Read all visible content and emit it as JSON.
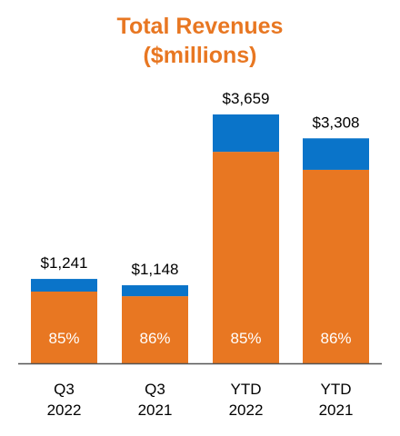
{
  "chart_data": {
    "type": "bar",
    "stacked": true,
    "title_lines": [
      "Total Revenues",
      "($millions)"
    ],
    "categories": [
      [
        "Q3",
        "2022"
      ],
      [
        "Q3",
        "2021"
      ],
      [
        "YTD",
        "2022"
      ],
      [
        "YTD",
        "2021"
      ]
    ],
    "totals": [
      1241,
      1148,
      3659,
      3308
    ],
    "total_labels": [
      "$1,241",
      "$1,148",
      "$3,659",
      "$3,308"
    ],
    "series": [
      {
        "values": [
          1055,
          987,
          3110,
          2845
        ],
        "color": "#e87722"
      },
      {
        "values": [
          186,
          161,
          549,
          463
        ],
        "color": "#0a74c9"
      }
    ],
    "segment_labels": [
      "85%",
      "86%",
      "85%",
      "86%"
    ],
    "ylim": [
      0,
      3659
    ],
    "grid": false,
    "legend": "none"
  }
}
